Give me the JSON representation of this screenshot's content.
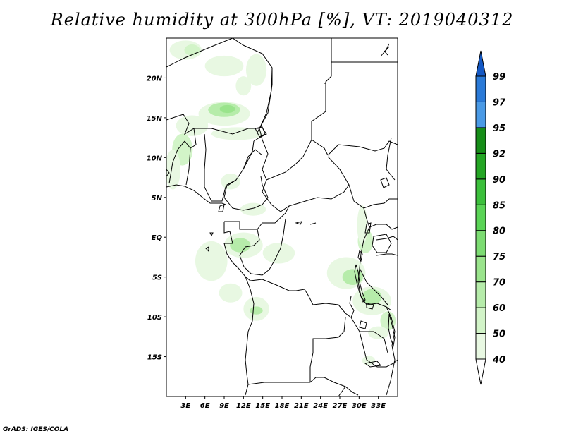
{
  "title": "Relative humidity at 300hPa [%], VT: 2019040312",
  "credit": "GrADS: IGES/COLA",
  "map": {
    "lon_range": [
      0,
      36
    ],
    "lat_range": [
      -20,
      25
    ],
    "lat_ticks": [
      {
        "value": 20,
        "label": "20N"
      },
      {
        "value": 15,
        "label": "15N"
      },
      {
        "value": 10,
        "label": "10N"
      },
      {
        "value": 5,
        "label": "5N"
      },
      {
        "value": 0,
        "label": "EQ"
      },
      {
        "value": -5,
        "label": "5S"
      },
      {
        "value": -10,
        "label": "10S"
      },
      {
        "value": -15,
        "label": "15S"
      }
    ],
    "lon_ticks": [
      {
        "value": 3,
        "label": "3E"
      },
      {
        "value": 6,
        "label": "6E"
      },
      {
        "value": 9,
        "label": "9E"
      },
      {
        "value": 12,
        "label": "12E"
      },
      {
        "value": 15,
        "label": "15E"
      },
      {
        "value": 18,
        "label": "18E"
      },
      {
        "value": 21,
        "label": "21E"
      },
      {
        "value": 24,
        "label": "24E"
      },
      {
        "value": 27,
        "label": "27E"
      },
      {
        "value": 30,
        "label": "30E"
      },
      {
        "value": 33,
        "label": "33E"
      }
    ],
    "humidity_areas": [
      {
        "lon": 3,
        "lat": 23.5,
        "rx": 2.5,
        "ry": 1.2,
        "level": 40
      },
      {
        "lon": 4,
        "lat": 23.5,
        "rx": 1.2,
        "ry": 0.7,
        "level": 50
      },
      {
        "lon": 9,
        "lat": 21.5,
        "rx": 3.0,
        "ry": 1.3,
        "level": 40
      },
      {
        "lon": 14,
        "lat": 21,
        "rx": 1.6,
        "ry": 2.0,
        "level": 40
      },
      {
        "lon": 12,
        "lat": 19,
        "rx": 1.2,
        "ry": 1.2,
        "level": 40
      },
      {
        "lon": 9,
        "lat": 15.5,
        "rx": 4.0,
        "ry": 1.5,
        "level": 40
      },
      {
        "lon": 9,
        "lat": 16,
        "rx": 2.5,
        "ry": 0.9,
        "level": 60
      },
      {
        "lon": 9.5,
        "lat": 16.1,
        "rx": 1.2,
        "ry": 0.5,
        "level": 70
      },
      {
        "lon": 4,
        "lat": 14,
        "rx": 2.5,
        "ry": 1.3,
        "level": 40
      },
      {
        "lon": 11,
        "lat": 13,
        "rx": 4.0,
        "ry": 0.8,
        "level": 40
      },
      {
        "lon": 2.5,
        "lat": 11,
        "rx": 1.6,
        "ry": 2.0,
        "level": 50
      },
      {
        "lon": 0.5,
        "lat": 8.5,
        "rx": 0.6,
        "ry": 2.0,
        "level": 70
      },
      {
        "lon": 1,
        "lat": 8.5,
        "rx": 1.2,
        "ry": 2.5,
        "level": 40
      },
      {
        "lon": 10,
        "lat": 7,
        "rx": 1.5,
        "ry": 1.0,
        "level": 40
      },
      {
        "lon": 13.5,
        "lat": 3.5,
        "rx": 2.0,
        "ry": 0.8,
        "level": 40
      },
      {
        "lon": 12,
        "lat": -1,
        "rx": 3.0,
        "ry": 1.6,
        "level": 40
      },
      {
        "lon": 11.5,
        "lat": -1,
        "rx": 1.6,
        "ry": 0.9,
        "level": 60
      },
      {
        "lon": 17.5,
        "lat": -2,
        "rx": 2.5,
        "ry": 1.3,
        "level": 40
      },
      {
        "lon": 7,
        "lat": -3,
        "rx": 2.5,
        "ry": 2.5,
        "level": 40
      },
      {
        "lon": 10,
        "lat": -7,
        "rx": 1.8,
        "ry": 1.2,
        "level": 40
      },
      {
        "lon": 14,
        "lat": -9,
        "rx": 2.0,
        "ry": 1.5,
        "level": 40
      },
      {
        "lon": 14,
        "lat": -9.2,
        "rx": 1.0,
        "ry": 0.5,
        "level": 60
      },
      {
        "lon": 31,
        "lat": -0.5,
        "rx": 1.2,
        "ry": 1.5,
        "level": 50
      },
      {
        "lon": 30.5,
        "lat": 0.5,
        "rx": 0.6,
        "ry": 0.8,
        "level": 70
      },
      {
        "lon": 28,
        "lat": -4.5,
        "rx": 3.0,
        "ry": 2.0,
        "level": 40
      },
      {
        "lon": 29,
        "lat": -5,
        "rx": 1.6,
        "ry": 1.0,
        "level": 60
      },
      {
        "lon": 32,
        "lat": -8,
        "rx": 3.0,
        "ry": 1.8,
        "level": 40
      },
      {
        "lon": 32,
        "lat": -7.5,
        "rx": 1.5,
        "ry": 1.0,
        "level": 60
      },
      {
        "lon": 30.5,
        "lat": 1.5,
        "rx": 0.8,
        "ry": 2.5,
        "level": 40
      },
      {
        "lon": 34.5,
        "lat": -10.5,
        "rx": 1.2,
        "ry": 1.2,
        "level": 50
      },
      {
        "lon": 33,
        "lat": -12,
        "rx": 1.6,
        "ry": 0.8,
        "level": 40
      },
      {
        "lon": 31.5,
        "lat": -15.5,
        "rx": 1.0,
        "ry": 0.6,
        "level": 40
      }
    ]
  },
  "colorbar": {
    "levels": [
      {
        "label": "40",
        "color": "#e8f8e2"
      },
      {
        "label": "50",
        "color": "#d2f4c8"
      },
      {
        "label": "60",
        "color": "#b6ecaa"
      },
      {
        "label": "70",
        "color": "#9ae48c"
      },
      {
        "label": "75",
        "color": "#7cdc72"
      },
      {
        "label": "80",
        "color": "#5ad456"
      },
      {
        "label": "85",
        "color": "#3cc03c"
      },
      {
        "label": "90",
        "color": "#24a624"
      },
      {
        "label": "92",
        "color": "#168e18"
      },
      {
        "label": "95",
        "color": "#4a9ae6"
      },
      {
        "label": "97",
        "color": "#2a7ad8"
      },
      {
        "label": "99",
        "color": "#1458c4"
      }
    ],
    "top_color": "#1458c4",
    "bottom_color": "#ffffff"
  }
}
